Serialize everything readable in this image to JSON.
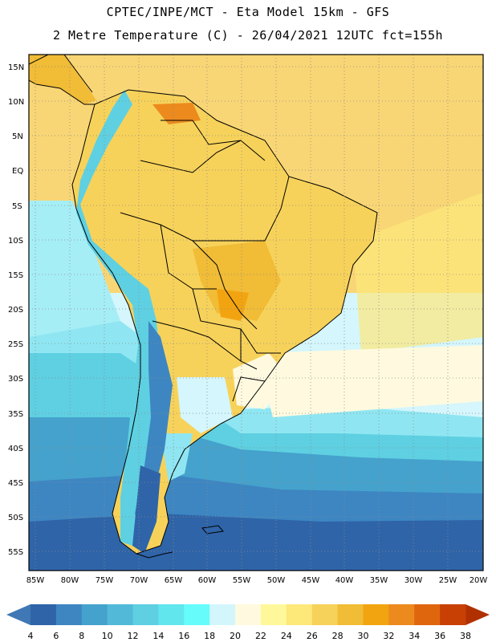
{
  "header": {
    "line1": "CPTEC/INPE/MCT -  Eta Model 15km - GFS",
    "line2": "2 Metre Temperature (C) - 26/04/2021 12UTC fct=155h"
  },
  "map": {
    "lat_labels": [
      "15N",
      "10N",
      "5N",
      "EQ",
      "5S",
      "10S",
      "15S",
      "20S",
      "25S",
      "30S",
      "35S",
      "40S",
      "45S",
      "50S",
      "55S"
    ],
    "lon_labels": [
      "85W",
      "80W",
      "75W",
      "70W",
      "65W",
      "60W",
      "55W",
      "50W",
      "45W",
      "40W",
      "35W",
      "30W",
      "25W",
      "20W"
    ],
    "lon_range": [
      -85,
      -20
    ],
    "lat_range": [
      -58,
      17
    ]
  },
  "colorbar": {
    "labels": [
      "4",
      "6",
      "8",
      "10",
      "12",
      "14",
      "16",
      "18",
      "20",
      "22",
      "24",
      "26",
      "28",
      "30",
      "32",
      "34",
      "36",
      "38"
    ],
    "colors": [
      "#3f78b4",
      "#2f64a8",
      "#3d86c2",
      "#45a2cc",
      "#52bad8",
      "#5ed0e2",
      "#62e6ee",
      "#66fcfc",
      "#d2f6fc",
      "#fffadf",
      "#fff89a",
      "#fde87a",
      "#f7d25a",
      "#f1bc36",
      "#f2a410",
      "#ec8a1e",
      "#e0660e",
      "#c84004",
      "#b03000"
    ]
  }
}
